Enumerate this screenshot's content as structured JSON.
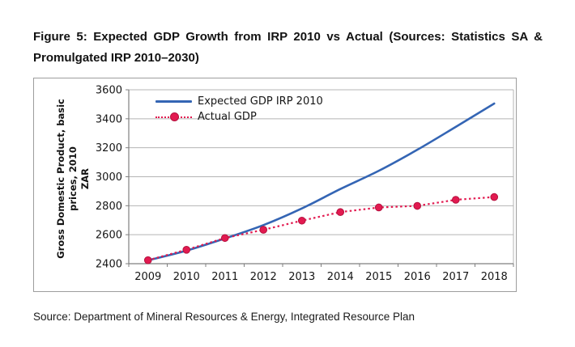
{
  "figure": {
    "caption_line1": "Figure 5: Expected GDP Growth from IRP 2010 vs Actual (Sources: Statistics SA &",
    "caption_line2": "Promulgated IRP 2010–2030)",
    "source": "Source: Department of Mineral Resources & Energy, Integrated Resource Plan"
  },
  "chart_data": {
    "type": "line",
    "title": "",
    "categories": [
      "2009",
      "2010",
      "2011",
      "2012",
      "2013",
      "2014",
      "2015",
      "2016",
      "2017",
      "2018"
    ],
    "series": [
      {
        "name": "Expected GDP IRP 2010",
        "color": "#3465b4",
        "style": "solid",
        "marker": "none",
        "values": [
          2423,
          2490,
          2574,
          2666,
          2781,
          2915,
          3041,
          3186,
          3344,
          3505
        ]
      },
      {
        "name": "Actual GDP",
        "color": "#e21a50",
        "marker_stroke": "#b5123f",
        "style": "dotted",
        "marker": "circle",
        "values": [
          2424,
          2496,
          2577,
          2634,
          2697,
          2756,
          2788,
          2799,
          2841,
          2860
        ]
      }
    ],
    "xlabel": "",
    "ylabel_line1": "Gross Domestic Product, basic prices, 2010",
    "ylabel_line2": "ZAR",
    "ylim": [
      2400,
      3600
    ],
    "ytick_step": 200,
    "grid": true,
    "legend_position": "top-left-inside",
    "colors": {
      "gridline": "#b5b5b5",
      "axis": "#7f7f7f",
      "tick_text": "#161616",
      "plot_border": "#b5b5b5"
    }
  }
}
